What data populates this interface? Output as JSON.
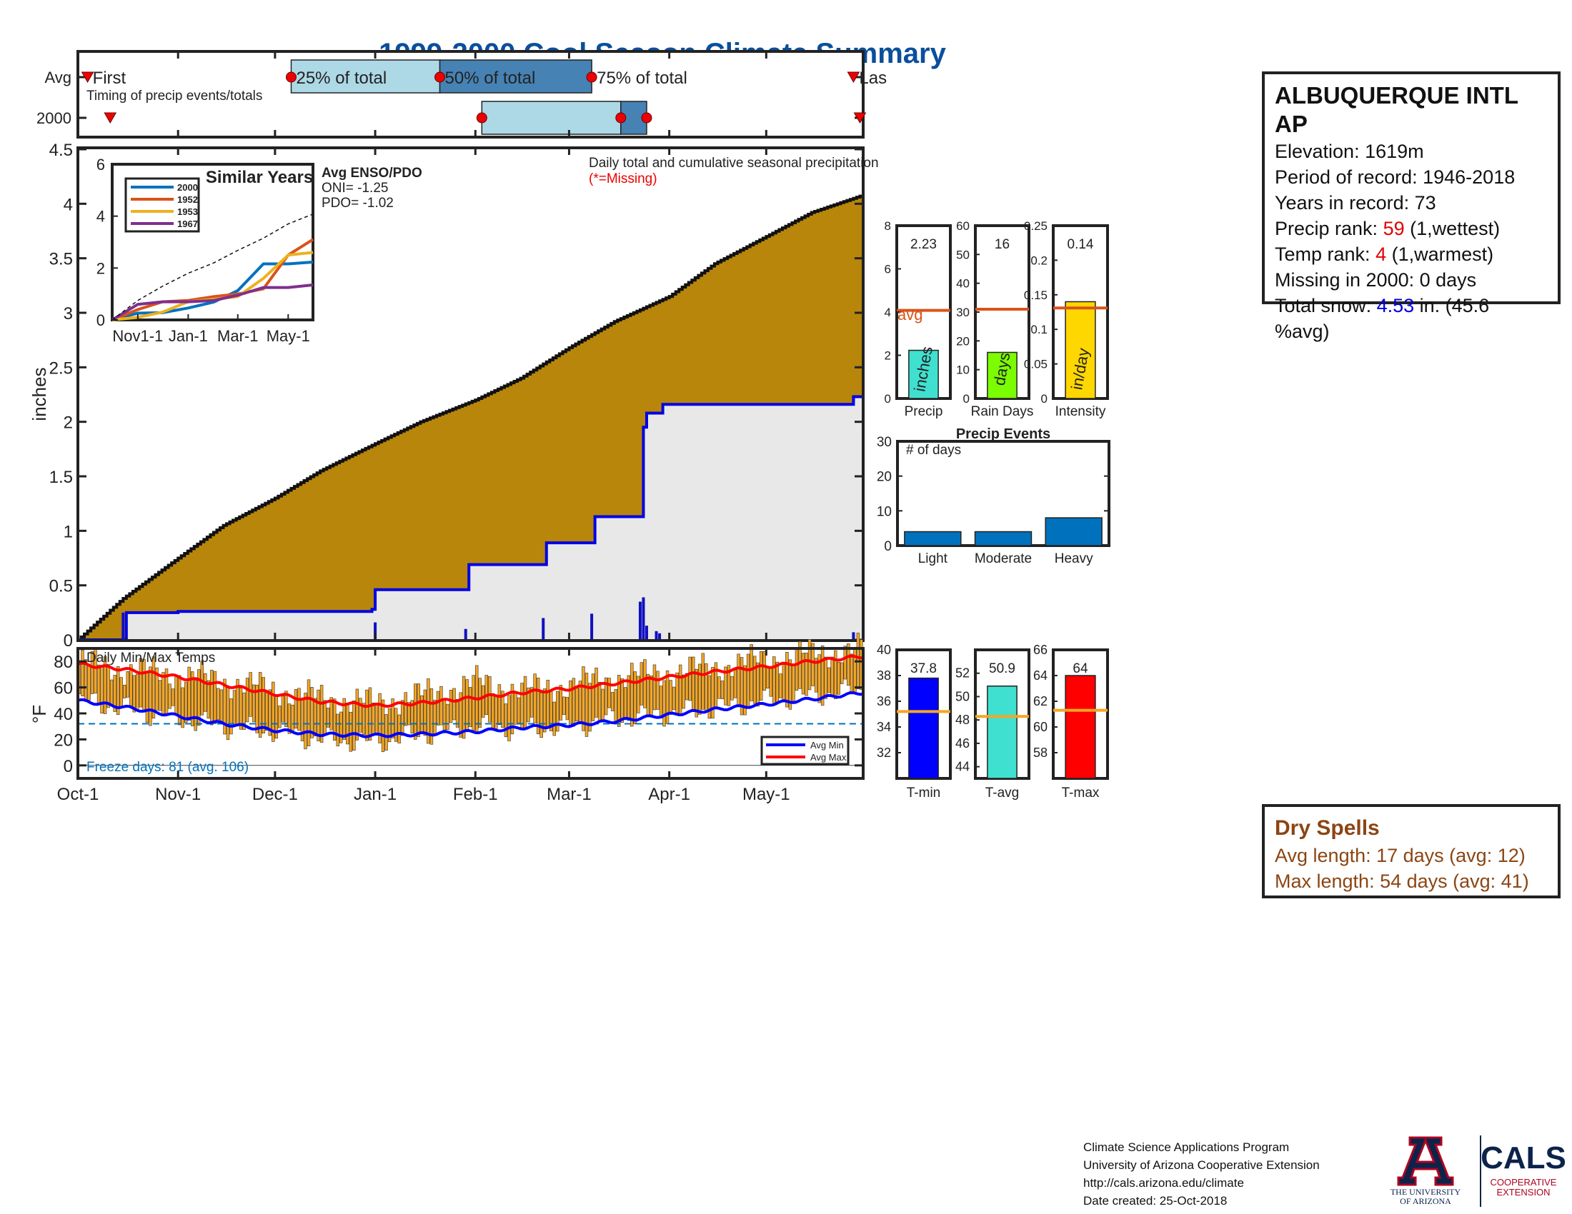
{
  "page": {
    "title": "1999-2000 Cool Season Climate Summary",
    "colors": {
      "title": "#0b4f9c",
      "cum_fill": "#b8860b",
      "cur_fill": "#e8e8e8",
      "cur_line": "#0000e6",
      "avg_line": "#d95319",
      "min_line": "#0000ff",
      "max_line": "#ff0000",
      "range_bar": "#f5a623"
    }
  },
  "timing": {
    "ylabels": [
      "Avg",
      "2000"
    ],
    "annotation": "Timing of precip events/totals",
    "labels": {
      "first": "First",
      "p25": "25% of total",
      "p50": "50% of total",
      "p75": "75% of total",
      "last": "Las"
    },
    "avg_dates": {
      "first": "Oct-4",
      "p25": "Dec-6",
      "p50": "Jan-21",
      "p75": "Mar-8",
      "last": "May-28"
    },
    "y2000_dates": {
      "first": "Oct-11",
      "p25": "Feb-3",
      "p50": "Mar-17",
      "p75": "Mar-25",
      "last": "May-30"
    }
  },
  "main": {
    "ylabel": "inches",
    "legend_note": "Daily total and cumulative seasonal precipitation",
    "missing_note": "(*=Missing)",
    "yticks": [
      "0",
      "0.5",
      "1",
      "1.5",
      "2",
      "2.5",
      "3",
      "3.5",
      "4",
      "4.5"
    ],
    "xticks": [
      "Oct-1",
      "Nov-1",
      "Dec-1",
      "Jan-1",
      "Feb-1",
      "Mar-1",
      "Apr-1",
      "May-1"
    ]
  },
  "inset": {
    "title": "Similar Years",
    "legend": [
      "2000",
      "1952",
      "1953",
      "1967"
    ],
    "colors": [
      "#0072bd",
      "#d95319",
      "#edb120",
      "#7e2f8e"
    ],
    "yticks": [
      "0",
      "2",
      "4",
      "6"
    ],
    "xticks": [
      "Nov1-1",
      "Jan-1",
      "Mar-1",
      "May-1"
    ],
    "enso_title": "Avg ENSO/PDO",
    "oni": "ONI= -1.25",
    "pdo": "PDO= -1.02"
  },
  "station": {
    "name": "ALBUQUERQUE INTL",
    "name2": "AP",
    "elevation": "Elevation: 1619m",
    "period": "Period of record: 1946-2018",
    "years": "Years in record: 73",
    "precip_rank_pre": "Precip rank: ",
    "precip_rank": "59",
    "precip_rank_post": " (1,wettest)",
    "temp_rank_pre": "Temp rank: ",
    "temp_rank": "4",
    "temp_rank_post": " (1,warmest)",
    "missing": "Missing in 2000: 0 days",
    "snow_pre": "Total snow: ",
    "snow_val": "4.53",
    "snow_post": " in. (45.6",
    "snow_post2": "%avg)"
  },
  "dry_spells": {
    "title": "Dry Spells",
    "avg": "Avg length: 17 days (avg: 12)",
    "max": "Max length: 54 days (avg: 41)"
  },
  "temps": {
    "title": "Daily Min/Max Temps",
    "ylabel": "°F",
    "yticks": [
      "0",
      "20",
      "40",
      "60",
      "80"
    ],
    "freeze": "Freeze days: 81 (avg. 106)",
    "legend_min": "Avg Min",
    "legend_max": "Avg Max"
  },
  "footer": {
    "line1": "Climate Science Applications Program",
    "line2": "University of Arizona Cooperative Extension",
    "line3": "http://cals.arizona.edu/climate",
    "line4": " Date created: 25-Oct-2018",
    "ua1": "THE UNIVERSITY",
    "ua2": "OF ARIZONA",
    "cals": "CALS",
    "cals1": "COOPERATIVE",
    "cals2": "EXTENSION"
  },
  "chart_data": [
    {
      "type": "area",
      "title": "1999-2000 Cool Season Climate Summary",
      "ylabel": "inches",
      "xlabel": "",
      "ylim": [
        0,
        4.5
      ],
      "x_range": [
        "Oct-1",
        "May-31"
      ],
      "series": [
        {
          "name": "avg_cumulative",
          "x": [
            "Oct-1",
            "Oct-15",
            "Nov-1",
            "Nov-15",
            "Dec-1",
            "Dec-15",
            "Jan-1",
            "Jan-15",
            "Feb-1",
            "Feb-15",
            "Mar-1",
            "Mar-15",
            "Apr-1",
            "Apr-15",
            "May-1",
            "May-15",
            "May-31"
          ],
          "values": [
            0,
            0.38,
            0.75,
            1.05,
            1.3,
            1.55,
            1.8,
            2.0,
            2.2,
            2.4,
            2.68,
            2.92,
            3.15,
            3.45,
            3.7,
            3.92,
            4.08
          ]
        },
        {
          "name": "2000_cumulative",
          "x": [
            "Oct-1",
            "Oct-15",
            "Oct-16",
            "Nov-1",
            "Dec-31",
            "Jan-1",
            "Jan-29",
            "Jan-30",
            "Feb-1",
            "Feb-22",
            "Feb-23",
            "Mar-8",
            "Mar-9",
            "Mar-23",
            "Mar-24",
            "Mar-25",
            "Mar-30",
            "May-27",
            "May-28",
            "May-31"
          ],
          "values": [
            0,
            0,
            0.25,
            0.26,
            0.28,
            0.46,
            0.46,
            0.69,
            0.69,
            0.69,
            0.89,
            0.89,
            1.13,
            1.13,
            1.95,
            2.08,
            2.16,
            2.16,
            2.23,
            2.23
          ]
        },
        {
          "name": "2000_daily",
          "x": [
            "Oct-15",
            "Jan-1",
            "Jan-29",
            "Feb-22",
            "Mar-8",
            "Mar-23",
            "Mar-24",
            "Mar-25",
            "Mar-28",
            "Mar-29",
            "May-28"
          ],
          "values": [
            0.25,
            0.16,
            0.1,
            0.2,
            0.24,
            0.35,
            0.39,
            0.13,
            0.08,
            0.06,
            0.07
          ]
        }
      ]
    },
    {
      "type": "line",
      "title": "Similar Years",
      "ylim": [
        0,
        6
      ],
      "x": [
        "Oct-1",
        "Nov-1",
        "Dec-1",
        "Jan-1",
        "Feb-1",
        "Mar-1",
        "Apr-1",
        "May-1",
        "May-31"
      ],
      "series": [
        {
          "name": "2000",
          "values": [
            0,
            0.26,
            0.28,
            0.46,
            0.69,
            1.13,
            2.16,
            2.16,
            2.23
          ]
        },
        {
          "name": "1952",
          "values": [
            0,
            0.4,
            0.7,
            0.75,
            0.9,
            1.0,
            1.2,
            2.5,
            3.1
          ]
        },
        {
          "name": "1953",
          "values": [
            0,
            0.1,
            0.3,
            0.7,
            0.8,
            0.9,
            1.6,
            2.5,
            2.6
          ]
        },
        {
          "name": "1967",
          "values": [
            0,
            0.6,
            0.7,
            0.7,
            0.75,
            0.95,
            1.25,
            1.25,
            1.35
          ]
        },
        {
          "name": "",
          "values": [
            0,
            0.75,
            1.3,
            1.8,
            2.2,
            2.68,
            3.15,
            3.7,
            4.08
          ]
        }
      ]
    },
    {
      "type": "bar",
      "categories": [
        "Precip",
        "Rain Days",
        "Intensity"
      ],
      "series": [
        {
          "name": "value",
          "values": [
            2.23,
            16,
            0.14
          ]
        },
        {
          "name": "avg",
          "values": [
            4.08,
            31,
            0.131
          ]
        }
      ],
      "ylims": [
        [
          0,
          8
        ],
        [
          0,
          60
        ],
        [
          0,
          0.25
        ]
      ],
      "bar_labels": [
        "inches",
        "days",
        "in/day"
      ]
    },
    {
      "type": "bar",
      "title": "Precip Events",
      "ylabel": "# of days",
      "categories": [
        "Light",
        "Moderate",
        "Heavy"
      ],
      "values": [
        4,
        4,
        8
      ],
      "ylim": [
        0,
        30
      ]
    },
    {
      "type": "bar",
      "categories": [
        "T-min",
        "T-avg",
        "T-max"
      ],
      "values": [
        37.8,
        50.9,
        64
      ],
      "avg": [
        35.2,
        48.3,
        61.3
      ],
      "ylims": [
        [
          30,
          40
        ],
        [
          43,
          54
        ],
        [
          56,
          66
        ]
      ]
    },
    {
      "type": "line",
      "title": "Daily Min/Max Temps",
      "ylabel": "°F",
      "ylim": [
        -10,
        90
      ],
      "freeze_line": 32,
      "x": [
        "Oct-1",
        "Oct-15",
        "Nov-1",
        "Nov-15",
        "Dec-1",
        "Dec-15",
        "Jan-1",
        "Jan-15",
        "Feb-1",
        "Feb-15",
        "Mar-1",
        "Mar-15",
        "Apr-1",
        "Apr-15",
        "May-1",
        "May-15",
        "May-31"
      ],
      "series": [
        {
          "name": "Avg Max",
          "values": [
            78,
            74,
            68,
            62,
            55,
            49,
            46,
            48,
            52,
            56,
            59,
            63,
            68,
            72,
            76,
            80,
            84
          ]
        },
        {
          "name": "Avg Min",
          "values": [
            50,
            45,
            38,
            32,
            27,
            24,
            23,
            24,
            26,
            29,
            31,
            34,
            39,
            43,
            47,
            51,
            56
          ]
        },
        {
          "name": "Daily Max",
          "values": [
            80,
            74,
            70,
            65,
            58,
            52,
            48,
            54,
            64,
            58,
            62,
            68,
            72,
            76,
            82,
            86,
            90
          ]
        },
        {
          "name": "Daily Min",
          "values": [
            50,
            44,
            36,
            30,
            26,
            20,
            18,
            24,
            30,
            28,
            30,
            36,
            40,
            44,
            50,
            54,
            58
          ]
        }
      ]
    }
  ]
}
